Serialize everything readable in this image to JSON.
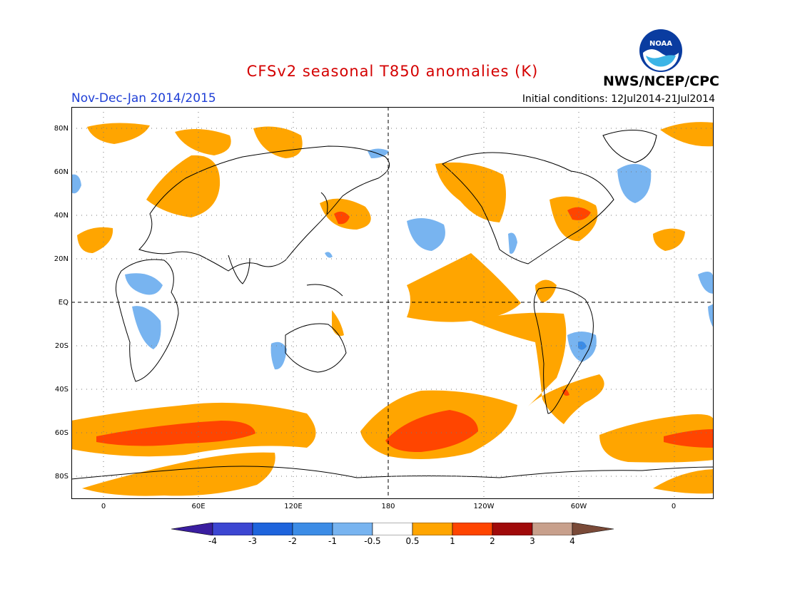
{
  "title": "CFSv2 seasonal T850 anomalies (K)",
  "period": "Nov-Dec-Jan 2014/2015",
  "initial_conditions": "Initial conditions: 12Jul2014-21Jul2014",
  "agency": "NWS/NCEP/CPC",
  "logo_text": "NOAA",
  "colors": {
    "title": "#d40000",
    "period": "#1f3fd6",
    "warm_light": "#ffa500",
    "warm_mid": "#ff4500",
    "cool_light": "#78b4f0",
    "cool_mid": "#3c8ce6",
    "land_outline": "#000000"
  },
  "map": {
    "lat_ticks": [
      "80N",
      "60N",
      "40N",
      "20N",
      "EQ",
      "20S",
      "40S",
      "60S",
      "80S"
    ],
    "lon_ticks": [
      "0",
      "60E",
      "120E",
      "180",
      "120W",
      "60W",
      "0"
    ]
  },
  "colorbar": {
    "labels": [
      "-4",
      "-3",
      "-2",
      "-1",
      "-0.5",
      "0.5",
      "1",
      "2",
      "3",
      "4"
    ],
    "colors": [
      "#3a1ea0",
      "#3c46d2",
      "#1e64dc",
      "#3c8ce6",
      "#78b4f0",
      "#ffffff",
      "#ffa500",
      "#ff4500",
      "#a00a0a",
      "#c8a08c",
      "#7a4a38"
    ]
  }
}
